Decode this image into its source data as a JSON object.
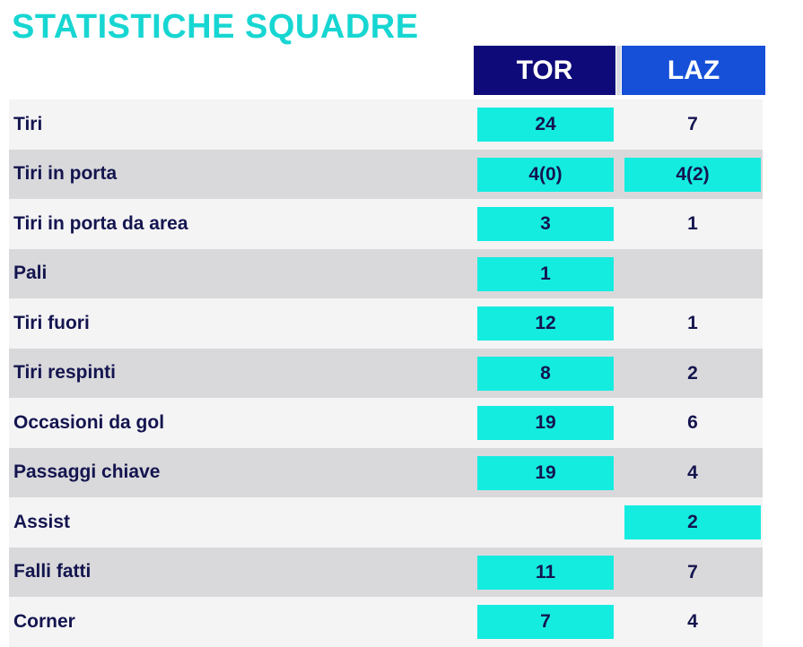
{
  "title": "STATISTICHE SQUADRE",
  "teams": {
    "home": "TOR",
    "away": "LAZ"
  },
  "colors": {
    "title": "#17d6d2",
    "home_header": "#0e0a7a",
    "away_header": "#1650d8",
    "highlight": "#14ece0",
    "text": "#14154f"
  },
  "stats": [
    {
      "label": "Tiri",
      "tor": "24",
      "laz": "7",
      "leader": "tor"
    },
    {
      "label": "Tiri in porta",
      "tor": "4(0)",
      "laz": "4(2)",
      "leader": "both"
    },
    {
      "label": "Tiri in porta da area",
      "tor": "3",
      "laz": "1",
      "leader": "tor"
    },
    {
      "label": "Pali",
      "tor": "1",
      "laz": "",
      "leader": "tor"
    },
    {
      "label": "Tiri fuori",
      "tor": "12",
      "laz": "1",
      "leader": "tor"
    },
    {
      "label": "Tiri respinti",
      "tor": "8",
      "laz": "2",
      "leader": "tor"
    },
    {
      "label": "Occasioni da gol",
      "tor": "19",
      "laz": "6",
      "leader": "tor"
    },
    {
      "label": "Passaggi chiave",
      "tor": "19",
      "laz": "4",
      "leader": "tor"
    },
    {
      "label": "Assist",
      "tor": "",
      "laz": "2",
      "leader": "laz"
    },
    {
      "label": "Falli fatti",
      "tor": "11",
      "laz": "7",
      "leader": "tor"
    },
    {
      "label": "Corner",
      "tor": "7",
      "laz": "4",
      "leader": "tor"
    }
  ]
}
